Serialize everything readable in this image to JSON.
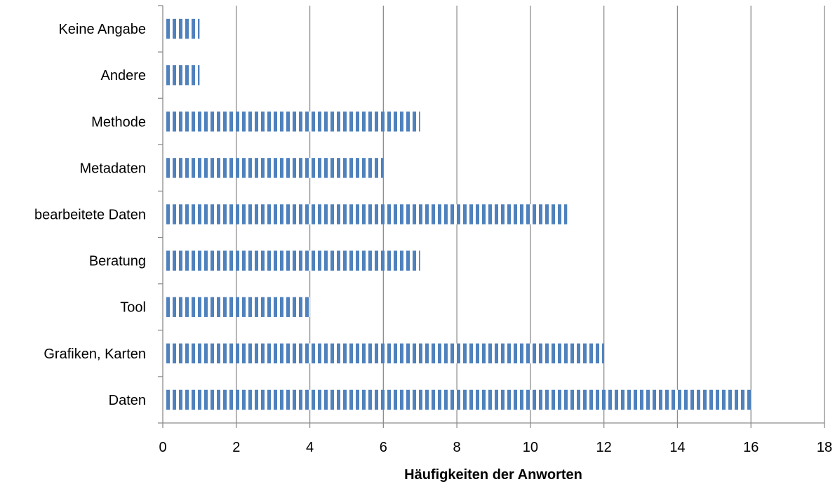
{
  "chart_data": {
    "type": "bar",
    "orientation": "horizontal",
    "categories": [
      "Daten",
      "Grafiken, Karten",
      "Tool",
      "Beratung",
      "bearbeitete Daten",
      "Metadaten",
      "Methode",
      "Andere",
      "Keine Angabe"
    ],
    "values": [
      16,
      12,
      4,
      7,
      11,
      6,
      7,
      1,
      1
    ],
    "xlabel": "Häufigkeiten der Anworten",
    "ylabel": "",
    "xlim": [
      0,
      18
    ],
    "xticks": [
      0,
      2,
      4,
      6,
      8,
      10,
      12,
      14,
      16,
      18
    ],
    "grid": "vertical",
    "legend": "none",
    "bar_color": "#4f81bd",
    "bar_pattern": "vertical-stripes"
  }
}
